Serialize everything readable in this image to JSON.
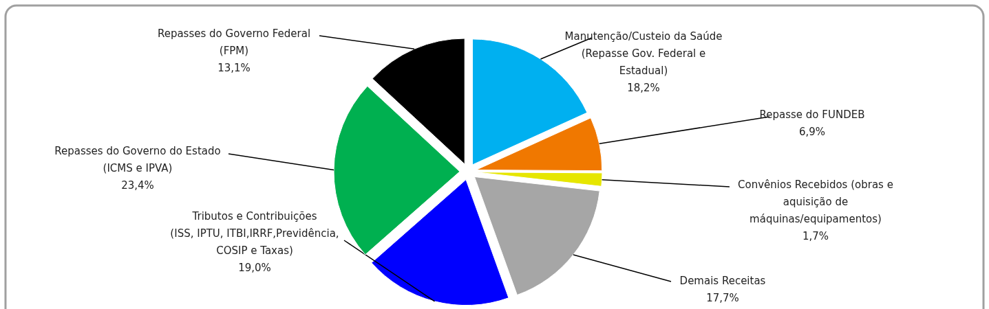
{
  "chart_data": {
    "type": "pie",
    "categories": [
      "Manutenção/Custeio da Saúde (Repasse Gov. Federal e Estadual)",
      "Repasse do FUNDEB",
      "Convênios Recebidos (obras e aquisição de máquinas/equipamentos)",
      "Demais Receitas",
      "Tributos e Contribuições (ISS, IPTU, ITBI,IRRF,Previdência, COSIP e Taxas)",
      "Repasses do Governo do Estado (ICMS e IPVA)",
      "Repasses do Governo Federal (FPM)"
    ],
    "values": [
      18.2,
      6.9,
      1.7,
      17.7,
      19.0,
      23.4,
      13.1
    ],
    "colors": [
      "#00b0f0",
      "#f07800",
      "#e6e600",
      "#a6a6a6",
      "#0000ff",
      "#00b050",
      "#000000"
    ],
    "value_labels": [
      "18,2%",
      "6,9%",
      "1,7%",
      "17,7%",
      "19,0%",
      "23,4%",
      "13,1%"
    ]
  }
}
